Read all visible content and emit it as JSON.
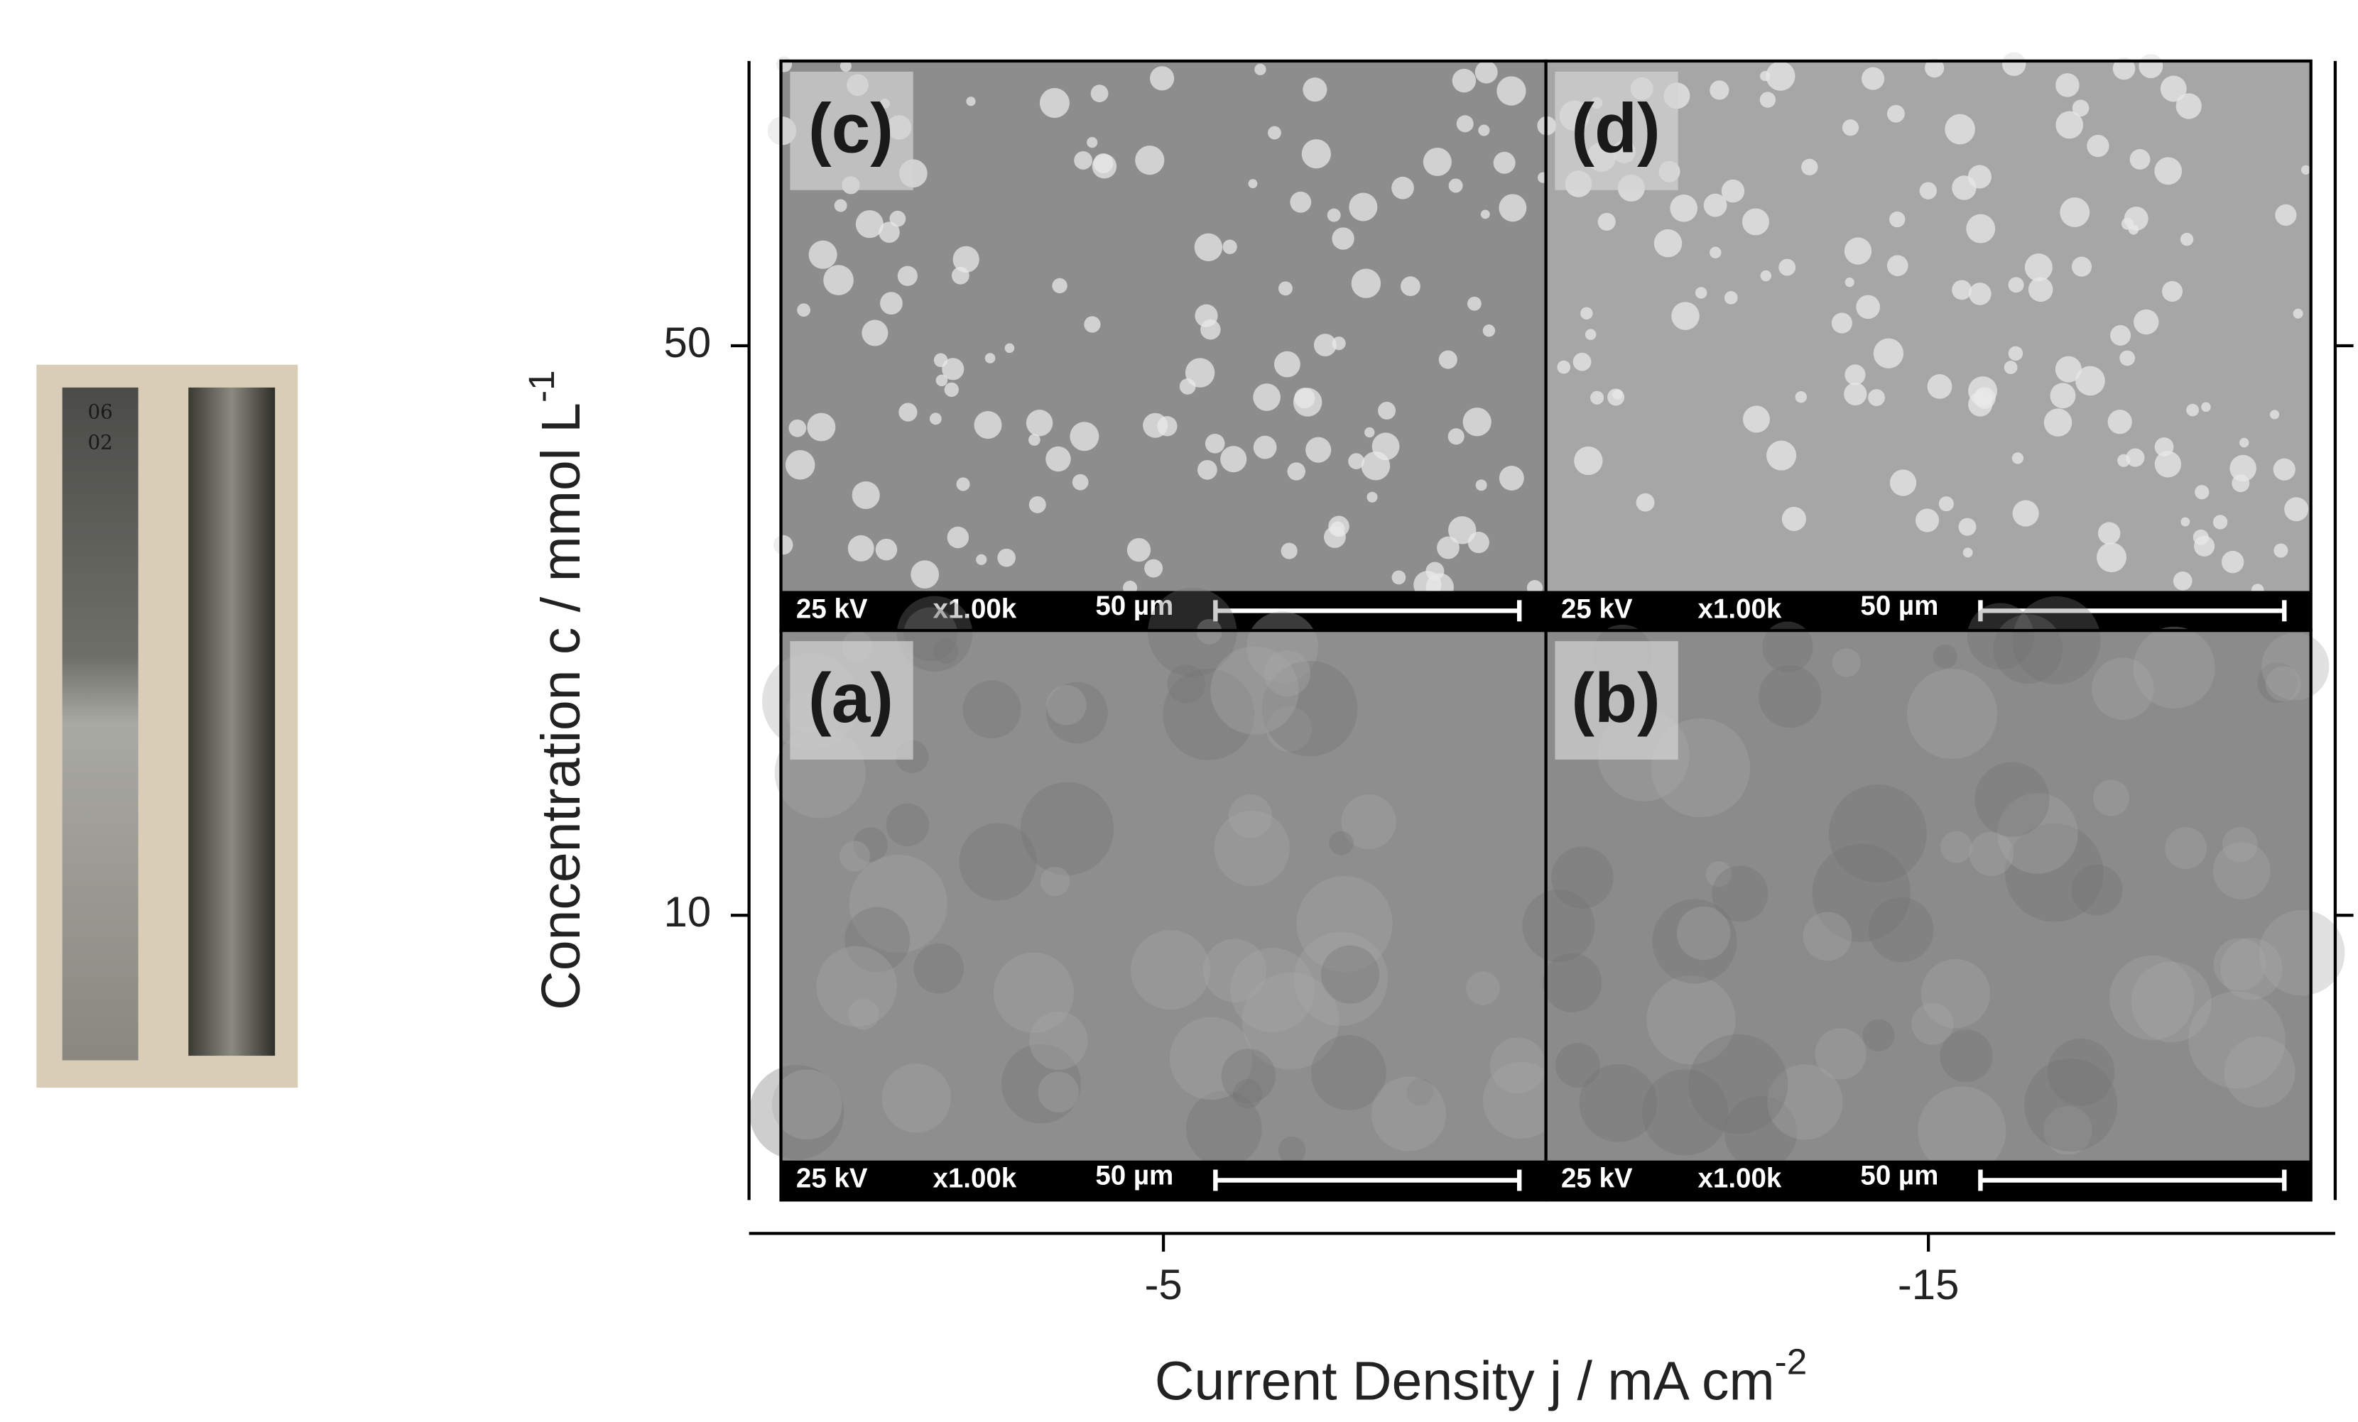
{
  "chart_data": {
    "type": "panel-grid",
    "xlabel": "Current Density j  /  mA cm",
    "xlabel_sup": "-2",
    "ylabel": "Concentration c  /  mmol L",
    "ylabel_sup": "-1",
    "xlim": [
      0,
      -20
    ],
    "xticks": [
      -5,
      -15
    ],
    "ylim": [
      -10,
      70
    ],
    "yticks": [
      10,
      50
    ],
    "panels": [
      {
        "label": "(c)",
        "voltage": "25 kV",
        "magnification": "x1.00k",
        "scale": "50 µm",
        "color": "#8d8d8d"
      },
      {
        "label": "(d)",
        "voltage": "25 kV",
        "magnification": "x1.00k",
        "scale": "50 µm",
        "color": "#a6a6a6"
      },
      {
        "label": "(a)",
        "voltage": "25 kV",
        "magnification": "x1.00k",
        "scale": "50 µm",
        "color": "#8e8e8e"
      },
      {
        "label": "(b)",
        "voltage": "25 kV",
        "magnification": "x1.00k",
        "scale": "50 µm",
        "color": "#8b8b8b"
      }
    ],
    "sample_marks": [
      "06",
      "02"
    ]
  }
}
